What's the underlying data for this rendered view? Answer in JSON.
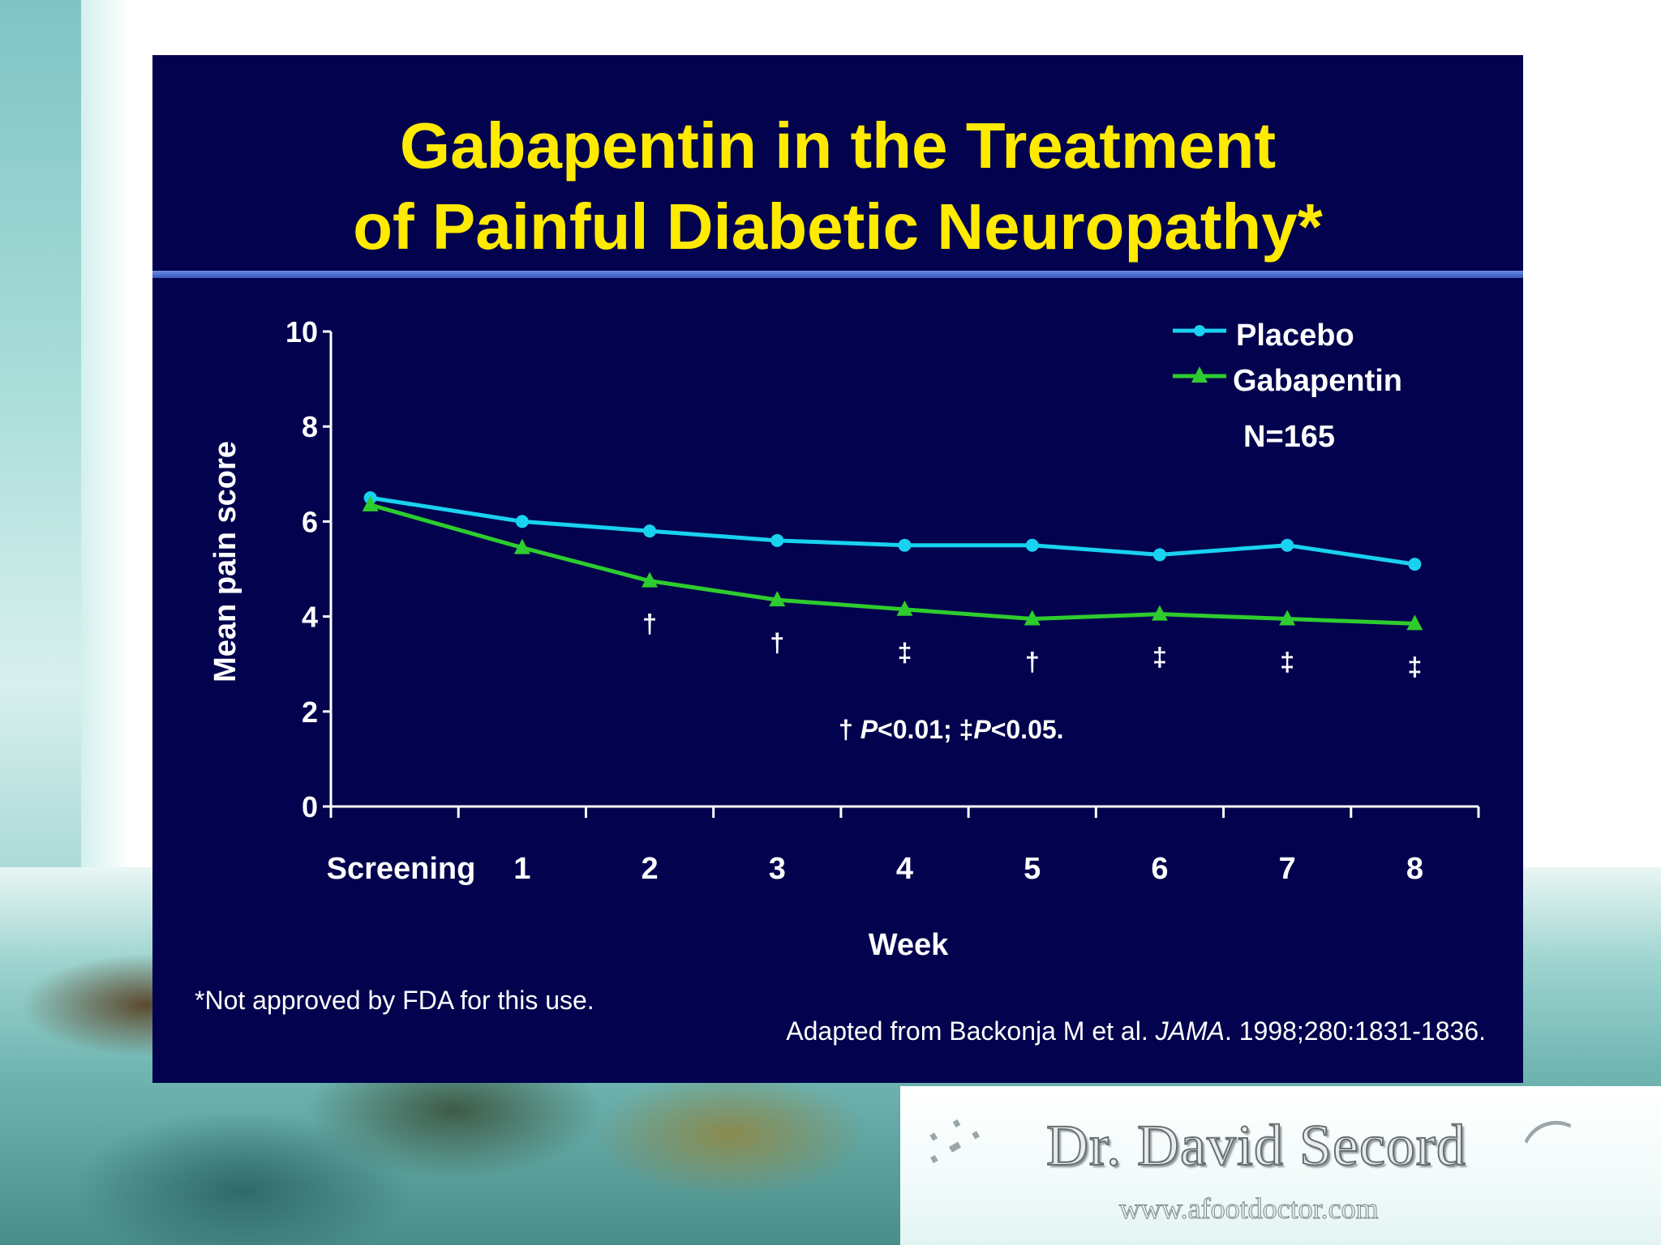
{
  "slide": {
    "title_line1": "Gabapentin in the Treatment",
    "title_line2": "of Painful Diabetic Neuropathy*",
    "n_label": "N=165",
    "significance_note": {
      "dagger_symbol": "†",
      "p1_label": "P",
      "p1_rest": "<0.01; ",
      "ddagger_symbol": "‡",
      "p2_label": "P",
      "p2_rest": "<0.05."
    },
    "footnote": "*Not approved by FDA for this use.",
    "citation_prefix": "Adapted from Backonja M et al. ",
    "citation_journal": "JAMA",
    "citation_suffix": ". 1998;280:1831-1836."
  },
  "branding": {
    "name": "Dr. David Secord",
    "url": "www.afootdoctor.com"
  },
  "colors": {
    "slide_background": "#02024e",
    "title": "#ffea00",
    "placebo": "#19d2f0",
    "gabapentin": "#2ecc2e",
    "axis": "#ffffff"
  },
  "chart_data": {
    "type": "line",
    "xlabel": "Week",
    "ylabel": "Mean pain score",
    "categories": [
      "Screening",
      "1",
      "2",
      "3",
      "4",
      "5",
      "6",
      "7",
      "8"
    ],
    "ylim": [
      0,
      10
    ],
    "yticks": [
      0,
      2,
      4,
      6,
      8,
      10
    ],
    "legend_position": "top-right",
    "series": [
      {
        "name": "Placebo",
        "marker": "circle",
        "values": [
          6.5,
          6.0,
          5.8,
          5.6,
          5.5,
          5.5,
          5.3,
          5.5,
          5.1
        ]
      },
      {
        "name": "Gabapentin",
        "marker": "triangle",
        "values": [
          6.35,
          5.45,
          4.75,
          4.35,
          4.15,
          3.95,
          4.05,
          3.95,
          3.85
        ],
        "significance": [
          "",
          "",
          "†",
          "†",
          "‡",
          "†",
          "‡",
          "‡",
          "‡"
        ]
      }
    ]
  }
}
